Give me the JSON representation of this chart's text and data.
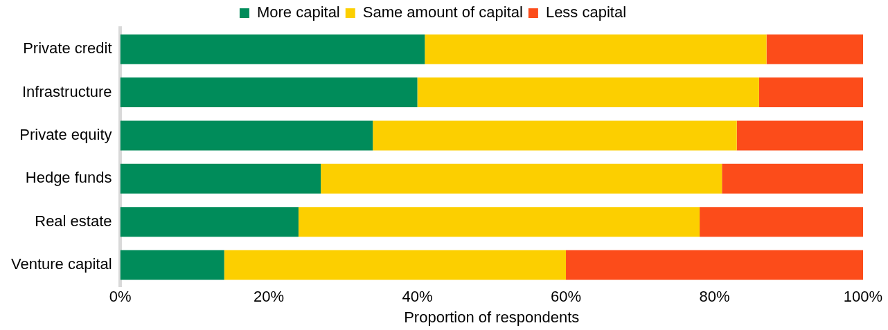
{
  "chart_data": {
    "type": "bar",
    "orientation": "horizontal",
    "stacked": true,
    "xlabel": "Proportion of respondents",
    "categories": [
      "Private credit",
      "Infrastructure",
      "Private equity",
      "Hedge funds",
      "Real estate",
      "Venture capital"
    ],
    "series": [
      {
        "name": "More capital",
        "color": "#008c5a",
        "values": [
          41,
          40,
          34,
          27,
          24,
          14
        ]
      },
      {
        "name": "Same amount of capital",
        "color": "#fccf00",
        "values": [
          46,
          46,
          49,
          54,
          54,
          46
        ]
      },
      {
        "name": "Less capital",
        "color": "#fc4c1a",
        "values": [
          13,
          14,
          17,
          19,
          22,
          40
        ]
      }
    ],
    "xlim": [
      0,
      100
    ],
    "xticks": [
      {
        "value": 0,
        "label": "0%"
      },
      {
        "value": 20,
        "label": "20%"
      },
      {
        "value": 40,
        "label": "40%"
      },
      {
        "value": 60,
        "label": "60%"
      },
      {
        "value": 80,
        "label": "80%"
      },
      {
        "value": 100,
        "label": "100%"
      }
    ],
    "grid": false,
    "legend": "top"
  }
}
